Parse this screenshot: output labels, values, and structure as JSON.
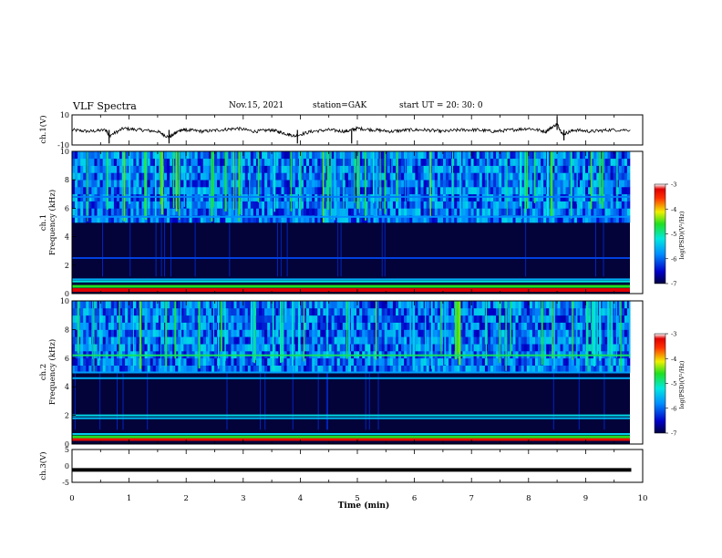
{
  "header": {
    "title": "VLF Spectra",
    "date": "Nov.15, 2021",
    "station": "station=GAK",
    "start_ut": "start  UT  =   20: 30: 0"
  },
  "chart_data": [
    {
      "type": "line",
      "panel": "ch1-waveform",
      "ylabel": "ch.1(V)",
      "ylim": [
        -10,
        10
      ],
      "yticks": [
        "10",
        "-10"
      ],
      "x": [
        0,
        0.3,
        0.6,
        0.65,
        0.9,
        1.2,
        1.5,
        1.7,
        1.9,
        2.0,
        2.3,
        2.6,
        2.9,
        3.2,
        3.5,
        3.7,
        3.9,
        4.2,
        4.5,
        4.8,
        5.0,
        5.3,
        5.6,
        5.9,
        6.2,
        6.5,
        6.8,
        7.1,
        7.4,
        7.7,
        8.0,
        8.3,
        8.5,
        8.6,
        8.8,
        9.1,
        9.4,
        9.8
      ],
      "values": [
        0,
        -1,
        0,
        -4,
        1,
        0,
        -1,
        -5,
        0,
        0,
        -1,
        0,
        1,
        -1,
        0,
        -2,
        -4,
        -1,
        0,
        -1,
        1,
        0,
        -1,
        0,
        0,
        -1,
        0,
        0,
        -1,
        0,
        1,
        -1,
        4,
        -3,
        0,
        -1,
        0,
        0
      ],
      "series_color": "#000000"
    },
    {
      "type": "heatmap",
      "panel": "ch1-spectrogram",
      "ylabel": "ch.1\nFrequency (kHz)",
      "ylim": [
        0,
        10
      ],
      "yticks": [
        "0",
        "2",
        "4",
        "6",
        "8",
        "10"
      ],
      "xlim": [
        0,
        10
      ],
      "colorbar": {
        "label": "log(PSD)(V²/Hz)",
        "range": [
          -7,
          -3
        ],
        "ticks": [
          "-3",
          "-4",
          "-5",
          "-6",
          "-7"
        ]
      },
      "bands_khz": [
        {
          "f": 0.25,
          "level": -3.2
        },
        {
          "f": 0.5,
          "level": -4.3
        },
        {
          "f": 0.85,
          "level": -5.2
        },
        {
          "f": 1.0,
          "level": -5.6
        },
        {
          "f": 2.5,
          "level": -6.2
        },
        {
          "f": 5.4,
          "level": -5.8
        },
        {
          "f": 6.8,
          "level": -5.9
        }
      ],
      "emission_region_khz": [
        5.0,
        10.0
      ],
      "quiet_region_khz": [
        1.2,
        5.0
      ]
    },
    {
      "type": "heatmap",
      "panel": "ch2-spectrogram",
      "ylabel": "ch.2\nFrequency (kHz)",
      "ylim": [
        0,
        10
      ],
      "yticks": [
        "0",
        "2",
        "4",
        "6",
        "8",
        "10"
      ],
      "xlim": [
        0,
        10
      ],
      "colorbar": {
        "label": "log(PSD)(V²/Hz)",
        "range": [
          -7,
          -3
        ],
        "ticks": [
          "-3",
          "-4",
          "-5",
          "-6",
          "-7"
        ]
      },
      "bands_khz": [
        {
          "f": 0.35,
          "level": -3.3
        },
        {
          "f": 0.7,
          "level": -5.4
        },
        {
          "f": 1.8,
          "level": -5.5
        },
        {
          "f": 2.0,
          "level": -5.3
        },
        {
          "f": 4.6,
          "level": -5.6
        },
        {
          "f": 5.0,
          "level": -5.7
        },
        {
          "f": 6.2,
          "level": -4.8
        }
      ],
      "emission_region_khz": [
        5.0,
        10.0
      ],
      "quiet_region_khz": [
        1.0,
        5.0
      ]
    },
    {
      "type": "line",
      "panel": "ch3-waveform",
      "ylabel": "ch.3(V)",
      "ylim": [
        -5,
        5
      ],
      "yticks": [
        "5",
        "0",
        "-5"
      ],
      "x": [
        0,
        9.8
      ],
      "values": [
        -1.2,
        -1.2
      ],
      "series_color": "#000000"
    }
  ],
  "xaxis": {
    "label": "Time  (min)",
    "xlim": [
      0,
      10
    ],
    "ticks": [
      "0",
      "1",
      "2",
      "3",
      "4",
      "5",
      "6",
      "7",
      "8",
      "9",
      "10"
    ]
  }
}
